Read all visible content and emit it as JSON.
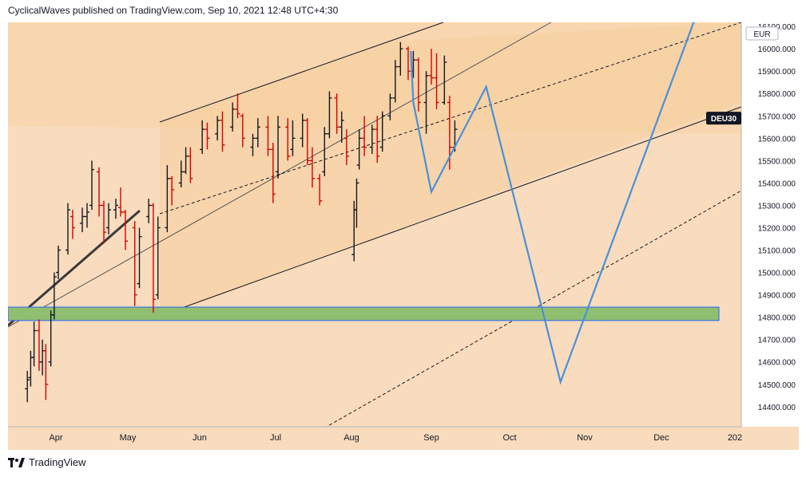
{
  "header": {
    "publisher_text": "CyclicalWaves published on TradingView.com, Sep 10, 2021 12:48 UTC+4:30"
  },
  "footer": {
    "brand": "TradingView",
    "logo": "tradingview-logo-icon"
  },
  "colors": {
    "background": "#f8dcbd",
    "channel_fill": "#f7cf9f",
    "up_bar": "#131722",
    "down_bar": "#d50000",
    "projection": "#4a90d9",
    "support_zone": "#8fbf6f",
    "support_zone_border": "#2962ff"
  },
  "chart_data": {
    "type": "ohlc",
    "symbol_label": "DEU30",
    "currency": "EUR",
    "grid": false,
    "y_axis": {
      "ticks": [
        14400,
        14500,
        14600,
        14700,
        14800,
        14900,
        15000,
        15100,
        15200,
        15300,
        15400,
        15500,
        15600,
        15700,
        15800,
        15900,
        16000,
        16100
      ],
      "tick_labels": [
        "14400.000",
        "14500.000",
        "14600.000",
        "14700.000",
        "14800.000",
        "14900.000",
        "15000.000",
        "15100.000",
        "15200.000",
        "15300.000",
        "15400.000",
        "15500.000",
        "15600.000",
        "15700.000",
        "15800.000",
        "15900.000",
        "16000.000",
        "16100.000"
      ],
      "current_price_label": "DEU30"
    },
    "x_axis": {
      "tick_labels": [
        "Apr",
        "May",
        "Jun",
        "Jul",
        "Aug",
        "Sep",
        "Oct",
        "Nov",
        "Dec",
        "202"
      ]
    },
    "support_zone": {
      "low": 14785,
      "high": 14845
    },
    "projection_path": [
      {
        "date": "Aug 24",
        "price": 15990
      },
      {
        "date": "Aug 25",
        "price": 15760
      },
      {
        "date": "Sep 1",
        "price": 15360
      },
      {
        "date": "Sep 22",
        "price": 15830
      },
      {
        "date": "Oct 22",
        "price": 14510
      },
      {
        "date": "Dec 15",
        "price": 16130
      }
    ],
    "price_series": [
      {
        "date": "Mar 15",
        "o": 14480,
        "h": 14560,
        "l": 14420,
        "c": 14520
      },
      {
        "date": "Mar 17",
        "o": 14530,
        "h": 14650,
        "l": 14490,
        "c": 14620
      },
      {
        "date": "Mar 19",
        "o": 14620,
        "h": 14780,
        "l": 14580,
        "c": 14740
      },
      {
        "date": "Mar 22",
        "o": 14740,
        "h": 14790,
        "l": 14560,
        "c": 14600
      },
      {
        "date": "Mar 24",
        "o": 14600,
        "h": 14700,
        "l": 14540,
        "c": 14650
      },
      {
        "date": "Mar 26",
        "o": 14650,
        "h": 14680,
        "l": 14430,
        "c": 14500
      },
      {
        "date": "Mar 29",
        "o": 14600,
        "h": 14830,
        "l": 14580,
        "c": 14810
      },
      {
        "date": "Mar 31",
        "o": 14810,
        "h": 15000,
        "l": 14790,
        "c": 14980
      },
      {
        "date": "Apr 2",
        "o": 15000,
        "h": 15120,
        "l": 14970,
        "c": 15100
      },
      {
        "date": "Apr 6",
        "o": 15100,
        "h": 15310,
        "l": 15080,
        "c": 15280
      },
      {
        "date": "Apr 8",
        "o": 15250,
        "h": 15280,
        "l": 15150,
        "c": 15200
      },
      {
        "date": "Apr 12",
        "o": 15220,
        "h": 15290,
        "l": 15180,
        "c": 15250
      },
      {
        "date": "Apr 14",
        "o": 15250,
        "h": 15310,
        "l": 15200,
        "c": 15270
      },
      {
        "date": "Apr 16",
        "o": 15300,
        "h": 15500,
        "l": 15280,
        "c": 15460
      },
      {
        "date": "Apr 19",
        "o": 15450,
        "h": 15470,
        "l": 15250,
        "c": 15300
      },
      {
        "date": "Apr 21",
        "o": 15300,
        "h": 15320,
        "l": 15130,
        "c": 15180
      },
      {
        "date": "Apr 23",
        "o": 15200,
        "h": 15310,
        "l": 15170,
        "c": 15280
      },
      {
        "date": "Apr 26",
        "o": 15280,
        "h": 15330,
        "l": 15240,
        "c": 15300
      },
      {
        "date": "Apr 28",
        "o": 15290,
        "h": 15380,
        "l": 15250,
        "c": 15270
      },
      {
        "date": "Apr 30",
        "o": 15270,
        "h": 15280,
        "l": 15100,
        "c": 15140
      },
      {
        "date": "May 4",
        "o": 15200,
        "h": 15230,
        "l": 14850,
        "c": 14900
      },
      {
        "date": "May 6",
        "o": 14950,
        "h": 15200,
        "l": 14930,
        "c": 15160
      },
      {
        "date": "May 10",
        "o": 15250,
        "h": 15330,
        "l": 15220,
        "c": 15300
      },
      {
        "date": "May 12",
        "o": 15300,
        "h": 15310,
        "l": 14820,
        "c": 14880
      },
      {
        "date": "May 14",
        "o": 14900,
        "h": 15250,
        "l": 14880,
        "c": 15200
      },
      {
        "date": "May 18",
        "o": 15200,
        "h": 15480,
        "l": 15180,
        "c": 15420
      },
      {
        "date": "May 20",
        "o": 15420,
        "h": 15430,
        "l": 15300,
        "c": 15370
      },
      {
        "date": "May 24",
        "o": 15400,
        "h": 15500,
        "l": 15380,
        "c": 15450
      },
      {
        "date": "May 26",
        "o": 15450,
        "h": 15560,
        "l": 15440,
        "c": 15520
      },
      {
        "date": "May 28",
        "o": 15520,
        "h": 15560,
        "l": 15400,
        "c": 15420
      },
      {
        "date": "Jun 2",
        "o": 15550,
        "h": 15680,
        "l": 15530,
        "c": 15640
      },
      {
        "date": "Jun 4",
        "o": 15640,
        "h": 15670,
        "l": 15550,
        "c": 15600
      },
      {
        "date": "Jun 8",
        "o": 15620,
        "h": 15700,
        "l": 15590,
        "c": 15680
      },
      {
        "date": "Jun 10",
        "o": 15680,
        "h": 15720,
        "l": 15540,
        "c": 15570
      },
      {
        "date": "Jun 14",
        "o": 15650,
        "h": 15760,
        "l": 15630,
        "c": 15730
      },
      {
        "date": "Jun 16",
        "o": 15730,
        "h": 15800,
        "l": 15690,
        "c": 15710
      },
      {
        "date": "Jun 18",
        "o": 15700,
        "h": 15710,
        "l": 15560,
        "c": 15600
      },
      {
        "date": "Jun 22",
        "o": 15560,
        "h": 15620,
        "l": 15520,
        "c": 15600
      },
      {
        "date": "Jun 24",
        "o": 15600,
        "h": 15690,
        "l": 15560,
        "c": 15650
      },
      {
        "date": "Jun 28",
        "o": 15650,
        "h": 15700,
        "l": 15520,
        "c": 15550
      },
      {
        "date": "Jun 30",
        "o": 15550,
        "h": 15580,
        "l": 15310,
        "c": 15350
      },
      {
        "date": "Jul 2",
        "o": 15450,
        "h": 15700,
        "l": 15420,
        "c": 15650
      },
      {
        "date": "Jul 6",
        "o": 15650,
        "h": 15690,
        "l": 15500,
        "c": 15520
      },
      {
        "date": "Jul 8",
        "o": 15550,
        "h": 15680,
        "l": 15520,
        "c": 15600
      },
      {
        "date": "Jul 12",
        "o": 15600,
        "h": 15710,
        "l": 15560,
        "c": 15680
      },
      {
        "date": "Jul 14",
        "o": 15680,
        "h": 15690,
        "l": 15480,
        "c": 15500
      },
      {
        "date": "Jul 16",
        "o": 15500,
        "h": 15560,
        "l": 15380,
        "c": 15420
      },
      {
        "date": "Jul 19",
        "o": 15420,
        "h": 15440,
        "l": 15300,
        "c": 15320
      },
      {
        "date": "Jul 21",
        "o": 15450,
        "h": 15650,
        "l": 15430,
        "c": 15620
      },
      {
        "date": "Jul 23",
        "o": 15620,
        "h": 15810,
        "l": 15600,
        "c": 15780
      },
      {
        "date": "Jul 26",
        "o": 15780,
        "h": 15800,
        "l": 15620,
        "c": 15650
      },
      {
        "date": "Jul 28",
        "o": 15650,
        "h": 15720,
        "l": 15580,
        "c": 15680
      },
      {
        "date": "Jul 30",
        "o": 15600,
        "h": 15640,
        "l": 15480,
        "c": 15520
      },
      {
        "date": "Aug 2",
        "o": 15080,
        "h": 15320,
        "l": 15050,
        "c": 15280
      },
      {
        "date": "Aug 3",
        "o": 15280,
        "h": 15420,
        "l": 15200,
        "c": 15400
      },
      {
        "date": "Aug 4",
        "o": 15480,
        "h": 15640,
        "l": 15460,
        "c": 15600
      },
      {
        "date": "Aug 6",
        "o": 15600,
        "h": 15700,
        "l": 15520,
        "c": 15560
      },
      {
        "date": "Aug 9",
        "o": 15560,
        "h": 15660,
        "l": 15530,
        "c": 15640
      },
      {
        "date": "Aug 11",
        "o": 15640,
        "h": 15700,
        "l": 15490,
        "c": 15520
      },
      {
        "date": "Aug 13",
        "o": 15560,
        "h": 15720,
        "l": 15540,
        "c": 15700
      },
      {
        "date": "Aug 16",
        "o": 15700,
        "h": 15800,
        "l": 15680,
        "c": 15780
      },
      {
        "date": "Aug 18",
        "o": 15780,
        "h": 15950,
        "l": 15760,
        "c": 15920
      },
      {
        "date": "Aug 20",
        "o": 15920,
        "h": 16030,
        "l": 15880,
        "c": 16000
      },
      {
        "date": "Aug 23",
        "o": 16000,
        "h": 16010,
        "l": 15860,
        "c": 15900
      },
      {
        "date": "Aug 25",
        "o": 15900,
        "h": 15990,
        "l": 15870,
        "c": 15950
      },
      {
        "date": "Aug 27",
        "o": 15950,
        "h": 15960,
        "l": 15720,
        "c": 15760
      },
      {
        "date": "Aug 30",
        "o": 15760,
        "h": 15900,
        "l": 15620,
        "c": 15880
      },
      {
        "date": "Sep 1",
        "o": 15880,
        "h": 16000,
        "l": 15840,
        "c": 15870
      },
      {
        "date": "Sep 3",
        "o": 15870,
        "h": 15980,
        "l": 15730,
        "c": 15760
      },
      {
        "date": "Sep 6",
        "o": 15760,
        "h": 15970,
        "l": 15750,
        "c": 15940
      },
      {
        "date": "Sep 8",
        "o": 15760,
        "h": 15790,
        "l": 15460,
        "c": 15560
      },
      {
        "date": "Sep 10",
        "o": 15560,
        "h": 15680,
        "l": 15540,
        "c": 15640
      }
    ]
  }
}
